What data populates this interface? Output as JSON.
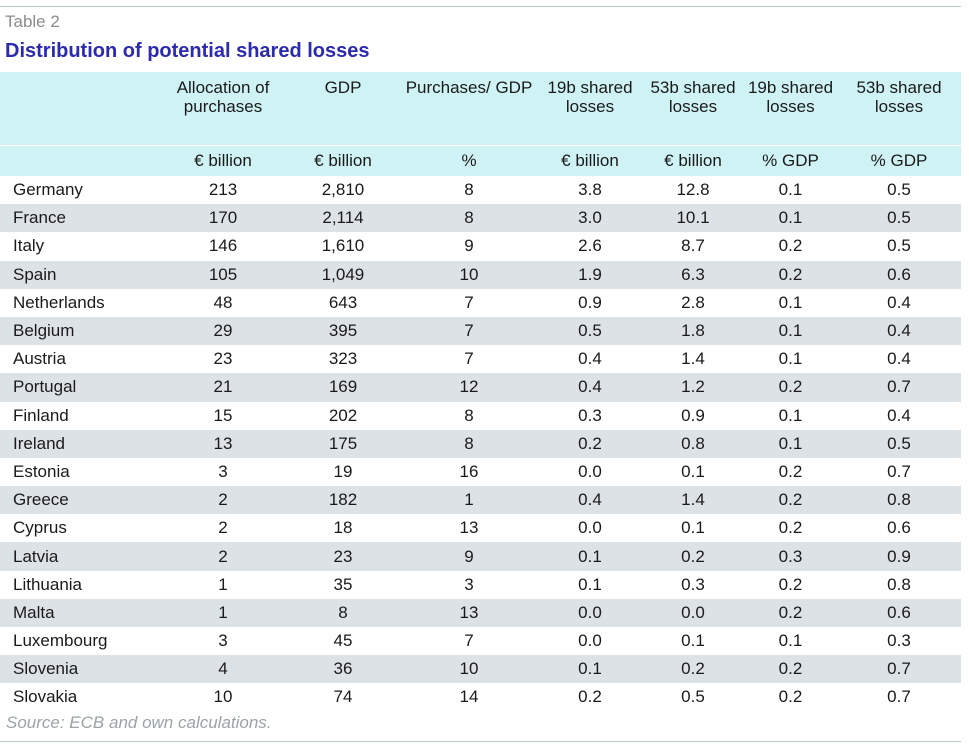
{
  "table_label": "Table 2",
  "title": "Distribution of potential shared losses",
  "source": "Source: ECB and own calculations.",
  "columns": [
    {
      "header": "",
      "unit": ""
    },
    {
      "header": "Allocation of purchases",
      "unit": "€ billion"
    },
    {
      "header": "GDP",
      "unit": "€ billion"
    },
    {
      "header": "Purchases/ GDP",
      "unit": "%"
    },
    {
      "header": "19b shared losses",
      "unit": "€ billion"
    },
    {
      "header": "53b shared losses",
      "unit": "€ billion"
    },
    {
      "header": "19b shared losses",
      "unit": "% GDP"
    },
    {
      "header": "53b shared losses",
      "unit": "% GDP"
    }
  ],
  "rows": [
    [
      "Germany",
      "213",
      "2,810",
      "8",
      "3.8",
      "12.8",
      "0.1",
      "0.5"
    ],
    [
      "France",
      "170",
      "2,114",
      "8",
      "3.0",
      "10.1",
      "0.1",
      "0.5"
    ],
    [
      "Italy",
      "146",
      "1,610",
      "9",
      "2.6",
      "8.7",
      "0.2",
      "0.5"
    ],
    [
      "Spain",
      "105",
      "1,049",
      "10",
      "1.9",
      "6.3",
      "0.2",
      "0.6"
    ],
    [
      "Netherlands",
      "48",
      "643",
      "7",
      "0.9",
      "2.8",
      "0.1",
      "0.4"
    ],
    [
      "Belgium",
      "29",
      "395",
      "7",
      "0.5",
      "1.8",
      "0.1",
      "0.4"
    ],
    [
      "Austria",
      "23",
      "323",
      "7",
      "0.4",
      "1.4",
      "0.1",
      "0.4"
    ],
    [
      "Portugal",
      "21",
      "169",
      "12",
      "0.4",
      "1.2",
      "0.2",
      "0.7"
    ],
    [
      "Finland",
      "15",
      "202",
      "8",
      "0.3",
      "0.9",
      "0.1",
      "0.4"
    ],
    [
      "Ireland",
      "13",
      "175",
      "8",
      "0.2",
      "0.8",
      "0.1",
      "0.5"
    ],
    [
      "Estonia",
      "3",
      "19",
      "16",
      "0.0",
      "0.1",
      "0.2",
      "0.7"
    ],
    [
      "Greece",
      "2",
      "182",
      "1",
      "0.4",
      "1.4",
      "0.2",
      "0.8"
    ],
    [
      "Cyprus",
      "2",
      "18",
      "13",
      "0.0",
      "0.1",
      "0.2",
      "0.6"
    ],
    [
      "Latvia",
      "2",
      "23",
      "9",
      "0.1",
      "0.2",
      "0.3",
      "0.9"
    ],
    [
      "Lithuania",
      "1",
      "35",
      "3",
      "0.1",
      "0.3",
      "0.2",
      "0.8"
    ],
    [
      "Malta",
      "1",
      "8",
      "13",
      "0.0",
      "0.0",
      "0.2",
      "0.6"
    ],
    [
      "Luxembourg",
      "3",
      "45",
      "7",
      "0.0",
      "0.1",
      "0.1",
      "0.3"
    ],
    [
      "Slovenia",
      "4",
      "36",
      "10",
      "0.1",
      "0.2",
      "0.2",
      "0.7"
    ],
    [
      "Slovakia",
      "10",
      "74",
      "14",
      "0.2",
      "0.5",
      "0.2",
      "0.7"
    ]
  ],
  "colors": {
    "header_bg": "#cff3f5",
    "stripe_bg": "#dde2e7",
    "title_color": "#2b2ab0"
  }
}
